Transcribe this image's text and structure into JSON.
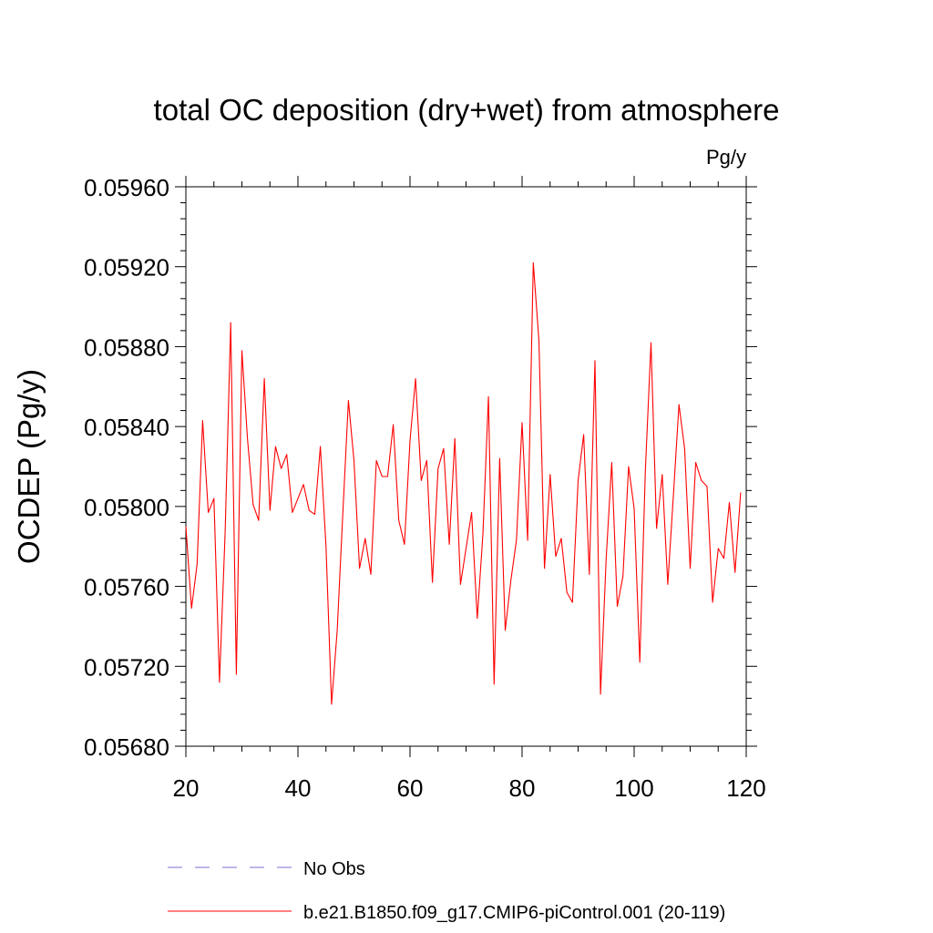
{
  "chart_data": {
    "type": "line",
    "title": "total OC deposition (dry+wet) from atmosphere",
    "units": "Pg/y",
    "ylabel": "OCDEP  (Pg/y)",
    "xlabel": "",
    "xlim": [
      20,
      120
    ],
    "ylim": [
      0.0568,
      0.0596
    ],
    "xticks": [
      20,
      40,
      60,
      80,
      100,
      120
    ],
    "yticks": [
      "0.05680",
      "0.05720",
      "0.05760",
      "0.05800",
      "0.05840",
      "0.05880",
      "0.05920",
      "0.05960"
    ],
    "grid": false,
    "legend_position": "bottom",
    "series": [
      {
        "name": "No Obs",
        "color": "#7b6fd6",
        "dash": "dashed",
        "x": [],
        "y": []
      },
      {
        "name": "b.e21.B1850.f09_g17.CMIP6-piControl.001 (20-119)",
        "color": "#ff0000",
        "dash": "solid",
        "x": [
          20,
          21,
          22,
          23,
          24,
          25,
          26,
          27,
          28,
          29,
          30,
          31,
          32,
          33,
          34,
          35,
          36,
          37,
          38,
          39,
          40,
          41,
          42,
          43,
          44,
          45,
          46,
          47,
          48,
          49,
          50,
          51,
          52,
          53,
          54,
          55,
          56,
          57,
          58,
          59,
          60,
          61,
          62,
          63,
          64,
          65,
          66,
          67,
          68,
          69,
          70,
          71,
          72,
          73,
          74,
          75,
          76,
          77,
          78,
          79,
          80,
          81,
          82,
          83,
          84,
          85,
          86,
          87,
          88,
          89,
          90,
          91,
          92,
          93,
          94,
          95,
          96,
          97,
          98,
          99,
          100,
          101,
          102,
          103,
          104,
          105,
          106,
          107,
          108,
          109,
          110,
          111,
          112,
          113,
          114,
          115,
          116,
          117,
          118,
          119
        ],
        "y": [
          0.0579,
          0.05749,
          0.05771,
          0.05843,
          0.05797,
          0.05804,
          0.05712,
          0.05787,
          0.05892,
          0.05716,
          0.05878,
          0.05834,
          0.05801,
          0.05793,
          0.05864,
          0.05798,
          0.0583,
          0.05819,
          0.05826,
          0.05797,
          0.05804,
          0.05811,
          0.05798,
          0.05796,
          0.0583,
          0.0578,
          0.05701,
          0.05738,
          0.05796,
          0.05853,
          0.05823,
          0.05769,
          0.05784,
          0.05766,
          0.05823,
          0.05815,
          0.05815,
          0.05841,
          0.05793,
          0.05781,
          0.05833,
          0.05864,
          0.05813,
          0.05823,
          0.05762,
          0.05819,
          0.05829,
          0.05781,
          0.05834,
          0.05761,
          0.05779,
          0.05797,
          0.05744,
          0.05786,
          0.05855,
          0.05711,
          0.05824,
          0.05738,
          0.05763,
          0.05783,
          0.05842,
          0.05783,
          0.05922,
          0.05883,
          0.05769,
          0.05816,
          0.05775,
          0.05784,
          0.05757,
          0.05752,
          0.05813,
          0.05836,
          0.05766,
          0.05873,
          0.05706,
          0.05774,
          0.05822,
          0.0575,
          0.05765,
          0.0582,
          0.05799,
          0.05722,
          0.05818,
          0.05882,
          0.05789,
          0.05816,
          0.05761,
          0.05805,
          0.05851,
          0.05829,
          0.05769,
          0.05822,
          0.05813,
          0.0581,
          0.05752,
          0.05779,
          0.05774,
          0.05802,
          0.05767,
          0.05807
        ]
      }
    ]
  }
}
